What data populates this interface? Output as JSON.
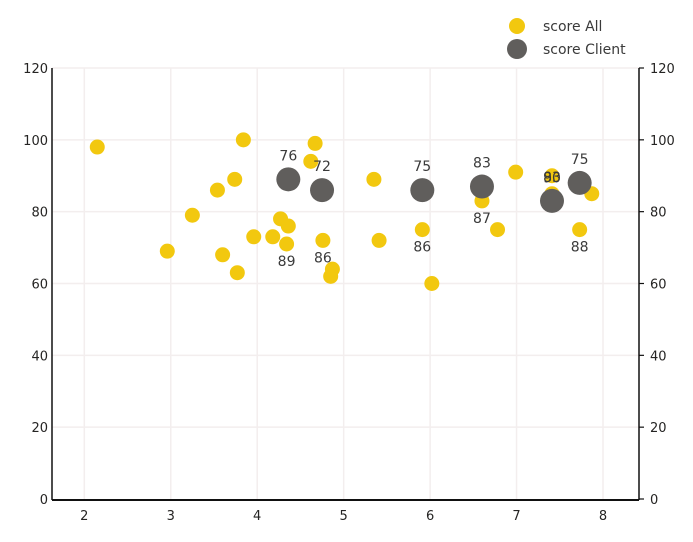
{
  "chart_data": {
    "type": "scatter",
    "title": "",
    "xlabel": "",
    "ylabel": "",
    "xlim": [
      1.62,
      8.4
    ],
    "ylim": [
      0,
      120
    ],
    "x_ticks": [
      2,
      3,
      4,
      5,
      6,
      7,
      8
    ],
    "y_ticks": [
      0,
      20,
      40,
      60,
      80,
      100,
      120
    ],
    "y2_ticks": [
      0,
      20,
      40,
      60,
      80,
      100,
      120
    ],
    "grid": true,
    "legend_position": "top-right",
    "colors": {
      "score_all": "#F2C80F",
      "score_client": "#605E5C"
    },
    "series": [
      {
        "name": "score All",
        "color": "#F2C80F",
        "points": [
          {
            "x": 2.15,
            "y": 98
          },
          {
            "x": 2.96,
            "y": 69
          },
          {
            "x": 3.25,
            "y": 79
          },
          {
            "x": 3.54,
            "y": 86
          },
          {
            "x": 3.6,
            "y": 68
          },
          {
            "x": 3.74,
            "y": 89
          },
          {
            "x": 3.77,
            "y": 63
          },
          {
            "x": 3.84,
            "y": 100
          },
          {
            "x": 3.96,
            "y": 73
          },
          {
            "x": 4.18,
            "y": 73
          },
          {
            "x": 4.27,
            "y": 78
          },
          {
            "x": 4.36,
            "y": 76
          },
          {
            "x": 4.34,
            "y": 71,
            "label": "89"
          },
          {
            "x": 4.62,
            "y": 94
          },
          {
            "x": 4.67,
            "y": 99
          },
          {
            "x": 4.76,
            "y": 72,
            "label": "86"
          },
          {
            "x": 4.87,
            "y": 64
          },
          {
            "x": 4.85,
            "y": 62
          },
          {
            "x": 5.35,
            "y": 89
          },
          {
            "x": 5.41,
            "y": 72
          },
          {
            "x": 5.91,
            "y": 75,
            "label": "86"
          },
          {
            "x": 6.02,
            "y": 60
          },
          {
            "x": 6.6,
            "y": 83,
            "label": "87"
          },
          {
            "x": 6.78,
            "y": 75
          },
          {
            "x": 6.99,
            "y": 91
          },
          {
            "x": 7.41,
            "y": 90
          },
          {
            "x": 7.41,
            "y": 85,
            "label": "90",
            "label_pos": "above"
          },
          {
            "x": 7.87,
            "y": 85
          },
          {
            "x": 7.73,
            "y": 75,
            "label": "88"
          }
        ]
      },
      {
        "name": "score Client",
        "color": "#605E5C",
        "points": [
          {
            "x": 4.36,
            "y": 89,
            "label": "76"
          },
          {
            "x": 4.75,
            "y": 86,
            "label": "72"
          },
          {
            "x": 5.91,
            "y": 86,
            "label": "75"
          },
          {
            "x": 6.6,
            "y": 87,
            "label": "83"
          },
          {
            "x": 7.41,
            "y": 83,
            "label": "83"
          },
          {
            "x": 7.73,
            "y": 88,
            "label": "75"
          }
        ]
      }
    ]
  },
  "legend": {
    "items": [
      {
        "label": "score All",
        "color": "#F2C80F"
      },
      {
        "label": "score Client",
        "color": "#605E5C"
      }
    ]
  }
}
